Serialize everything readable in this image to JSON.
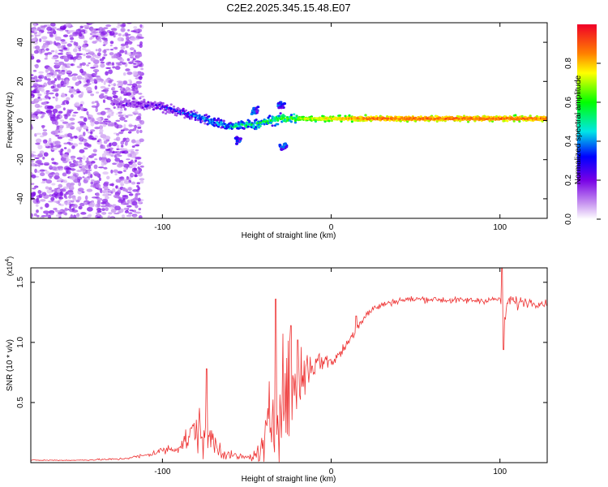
{
  "chart_data": [
    {
      "type": "heatmap",
      "title": "C2E2.2025.345.15.48.E07",
      "xlabel": "Height of straight line (km)",
      "ylabel": "Frequency (Hz)",
      "xlim": [
        -178,
        128
      ],
      "ylim": [
        -50,
        50
      ],
      "xticks": [
        -100,
        0,
        100
      ],
      "yticks": [
        -40,
        -20,
        0,
        20,
        40
      ],
      "colorbar": {
        "label": "Normalized spectral amplitude",
        "range": [
          0,
          1
        ],
        "ticks": [
          0.0,
          0.2,
          0.4,
          0.6,
          0.8
        ]
      },
      "features": [
        {
          "name": "diffuse noise",
          "x_range": [
            -178,
            -120
          ],
          "y_range": [
            -50,
            50
          ],
          "amplitude": 0.1
        },
        {
          "name": "signal track",
          "points": [
            [
              -130,
              9
            ],
            [
              -100,
              7
            ],
            [
              -80,
              2
            ],
            [
              -60,
              -3
            ],
            [
              -45,
              -2
            ],
            [
              -30,
              1
            ],
            [
              -20,
              1
            ],
            [
              0,
              1
            ],
            [
              50,
              1
            ],
            [
              128,
              1
            ]
          ],
          "amplitude_start": 0.25,
          "amplitude_end": 0.95
        },
        {
          "name": "scattered branch",
          "points": [
            [
              -55,
              -10
            ],
            [
              -45,
              5
            ],
            [
              -30,
              8
            ],
            [
              -28,
              -13
            ]
          ],
          "amplitude": 0.3
        }
      ]
    },
    {
      "type": "line",
      "xlabel": "Height of straight line (km)",
      "ylabel": "SNR (10 * v/v)",
      "y_scale_label": "(x10",
      "y_scale_exponent": "4",
      "xlim": [
        -178,
        128
      ],
      "ylim": [
        0,
        1.62
      ],
      "xticks": [
        -100,
        0,
        100
      ],
      "yticks": [
        0.5,
        1.0,
        1.5
      ],
      "ytick_labels": [
        "0.5",
        "1.0",
        "1.5"
      ],
      "series": [
        {
          "name": "SNR",
          "color": "#ee3333",
          "x": [
            -178,
            -150,
            -125,
            -110,
            -100,
            -90,
            -85,
            -80,
            -75,
            -70,
            -65,
            -60,
            -55,
            -50,
            -45,
            -40,
            -35,
            -30,
            -25,
            -20,
            -15,
            -10,
            -5,
            0,
            5,
            10,
            15,
            20,
            25,
            30,
            35,
            40,
            50,
            60,
            70,
            80,
            90,
            100,
            103,
            105,
            110,
            115,
            120,
            128
          ],
          "values": [
            0.02,
            0.02,
            0.03,
            0.06,
            0.1,
            0.13,
            0.2,
            0.28,
            0.25,
            0.18,
            0.1,
            0.06,
            0.05,
            0.04,
            0.06,
            0.12,
            0.4,
            0.55,
            0.6,
            0.65,
            0.78,
            0.82,
            0.85,
            0.84,
            0.9,
            1.0,
            1.12,
            1.22,
            1.28,
            1.31,
            1.33,
            1.35,
            1.36,
            1.36,
            1.35,
            1.35,
            1.35,
            1.36,
            1.2,
            1.36,
            1.33,
            1.34,
            1.33,
            1.32
          ],
          "noise": [
            0.005,
            0.005,
            0.01,
            0.02,
            0.04,
            0.06,
            0.12,
            0.2,
            0.25,
            0.15,
            0.08,
            0.04,
            0.03,
            0.03,
            0.05,
            0.15,
            0.45,
            0.5,
            0.45,
            0.4,
            0.25,
            0.12,
            0.08,
            0.07,
            0.06,
            0.05,
            0.05,
            0.04,
            0.035,
            0.03,
            0.03,
            0.03,
            0.03,
            0.03,
            0.03,
            0.03,
            0.03,
            0.03,
            0.1,
            0.04,
            0.06,
            0.05,
            0.04,
            0.03
          ],
          "spikes": [
            [
              -74,
              0.78
            ],
            [
              -33,
              1.36
            ],
            [
              -24,
              1.14
            ],
            [
              -20,
              1.02
            ],
            [
              15,
              1.22
            ],
            [
              101,
              1.62
            ],
            [
              102,
              0.94
            ]
          ]
        }
      ]
    }
  ]
}
